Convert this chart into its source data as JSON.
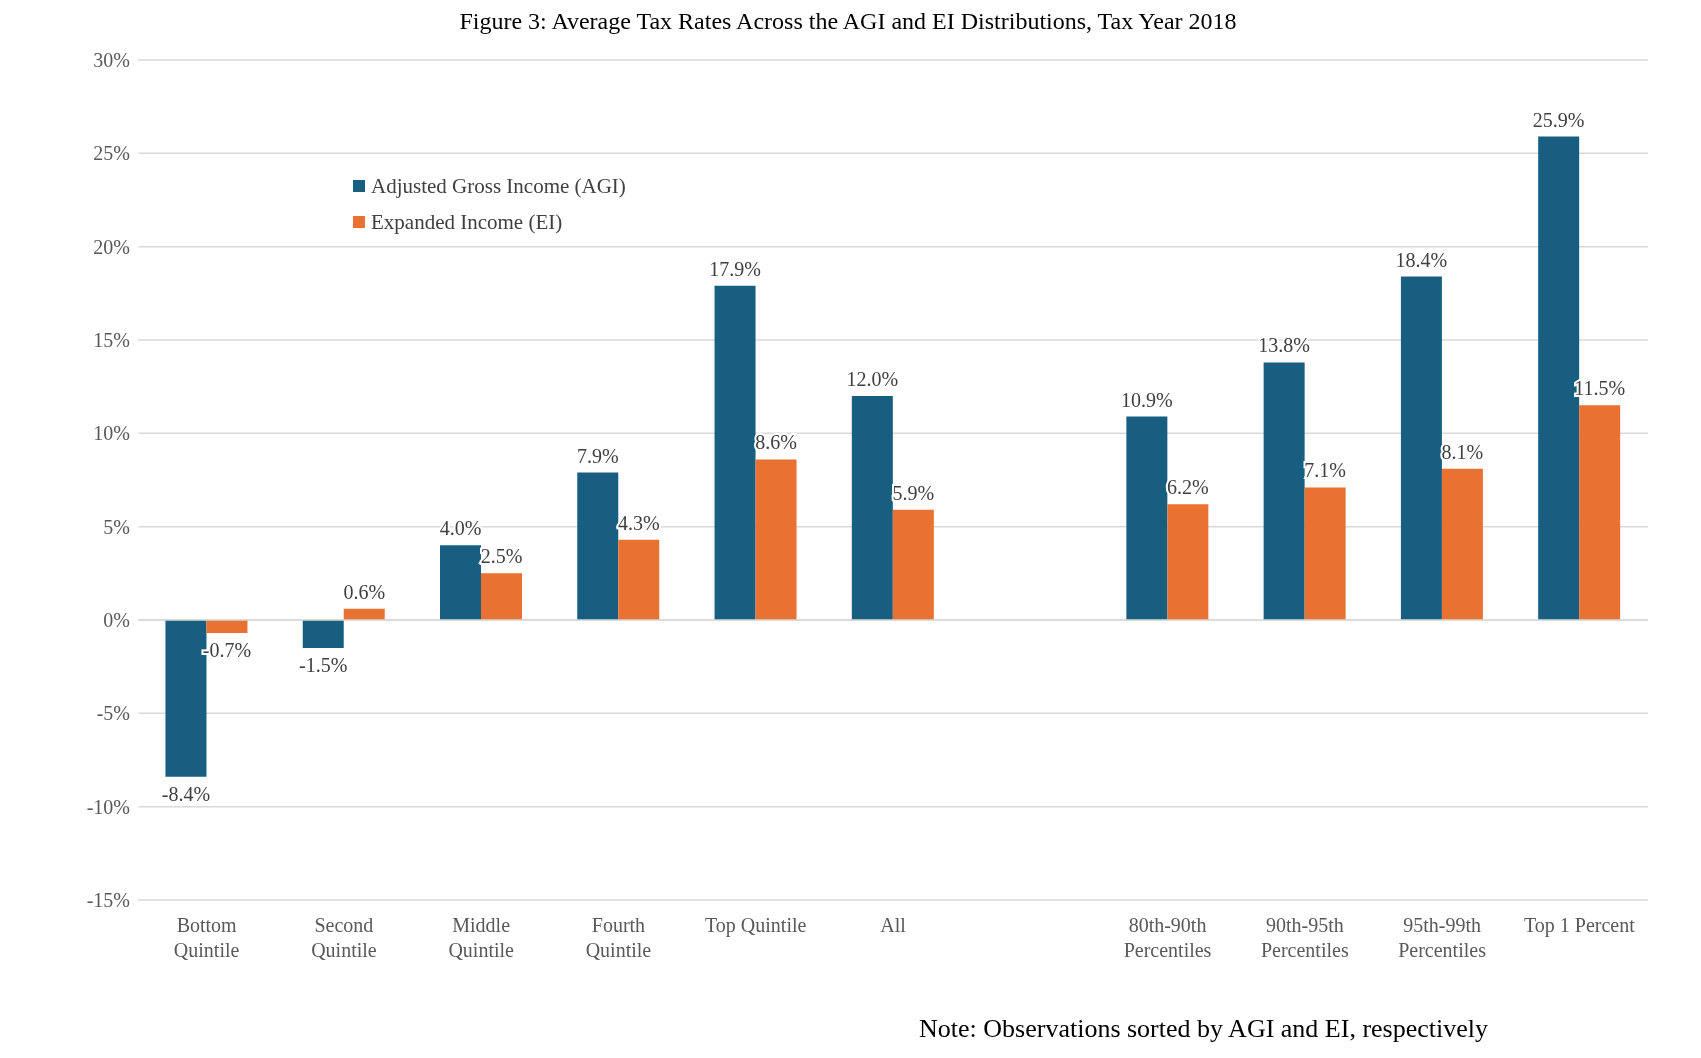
{
  "chart_data": {
    "type": "bar",
    "title": "Figure 3: Average Tax Rates Across the AGI and EI Distributions, Tax Year 2018",
    "categories": [
      "Bottom Quintile",
      "Second Quintile",
      "Middle Quintile",
      "Fourth Quintile",
      "Top Quintile",
      "All",
      null,
      "80th-90th Percentiles",
      "90th-95th Percentiles",
      "95th-99th Percentiles",
      "Top 1 Percent"
    ],
    "series": [
      {
        "name": "Adjusted Gross Income (AGI)",
        "color": "#175e80",
        "values": [
          -8.4,
          -1.5,
          4.0,
          7.9,
          17.9,
          12.0,
          null,
          10.9,
          13.8,
          18.4,
          25.9
        ],
        "value_labels": [
          "-8.4%",
          "-1.5%",
          "4.0%",
          "7.9%",
          "17.9%",
          "12.0%",
          null,
          "10.9%",
          "13.8%",
          "18.4%",
          "25.9%"
        ]
      },
      {
        "name": "Expanded Income (EI)",
        "color": "#e97132",
        "values": [
          -0.7,
          0.6,
          2.5,
          4.3,
          8.6,
          5.9,
          null,
          6.2,
          7.1,
          8.1,
          11.5
        ],
        "value_labels": [
          "-0.7%",
          "0.6%",
          "2.5%",
          "4.3%",
          "8.6%",
          "5.9%",
          null,
          "6.2%",
          "7.1%",
          "8.1%",
          "11.5%"
        ]
      }
    ],
    "ylim": [
      -15,
      30
    ],
    "yticks": [
      {
        "value": -15,
        "label": "-15%"
      },
      {
        "value": -10,
        "label": "-10%"
      },
      {
        "value": -5,
        "label": "-5%"
      },
      {
        "value": 0,
        "label": "0%"
      },
      {
        "value": 5,
        "label": "5%"
      },
      {
        "value": 10,
        "label": "10%"
      },
      {
        "value": 15,
        "label": "15%"
      },
      {
        "value": 20,
        "label": "20%"
      },
      {
        "value": 25,
        "label": "25%"
      },
      {
        "value": 30,
        "label": "30%"
      }
    ],
    "grid": "y",
    "legend": "top left",
    "annotations": [
      "Note: Observations sorted by AGI and EI, respectively"
    ]
  }
}
